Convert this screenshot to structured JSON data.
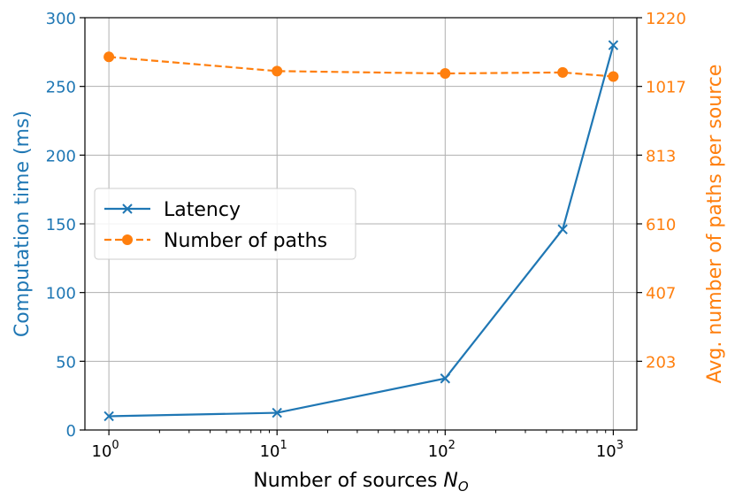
{
  "chart_data": {
    "type": "line",
    "xscale": "log",
    "x": [
      1,
      10,
      100,
      500,
      1000
    ],
    "xlim": [
      0.72,
      1380
    ],
    "xticks": [
      {
        "value": 1,
        "base": "10",
        "exp": "0"
      },
      {
        "value": 10,
        "base": "10",
        "exp": "1"
      },
      {
        "value": 100,
        "base": "10",
        "exp": "2"
      },
      {
        "value": 1000,
        "base": "10",
        "exp": "3"
      }
    ],
    "xlabel": "Number of sources ",
    "xlabel_symbol": "N",
    "xlabel_subscript": "O",
    "left_axis": {
      "label": "Computation time (ms)",
      "ylim": [
        0,
        300
      ],
      "ticks": [
        "0",
        "50",
        "100",
        "150",
        "200",
        "250",
        "300"
      ],
      "color": "#1f77b4"
    },
    "right_axis": {
      "label": "Avg. number of paths per source",
      "ylim": [
        0,
        1220
      ],
      "tick_values": [
        203.33,
        406.67,
        610,
        813.33,
        1016.67,
        1220
      ],
      "ticks": [
        "203",
        "407",
        "610",
        "813",
        "1017",
        "1220"
      ],
      "color": "#ff7f0e"
    },
    "grid": true,
    "series": [
      {
        "name": "Latency",
        "axis": "left",
        "values": [
          10,
          12.5,
          37.5,
          146,
          280
        ],
        "color": "#1f77b4",
        "marker": "x",
        "linestyle": "solid"
      },
      {
        "name": "Number of paths",
        "axis": "right",
        "values": [
          1104,
          1062,
          1055,
          1058,
          1046
        ],
        "color": "#ff7f0e",
        "marker": "circle",
        "linestyle": "dashed"
      }
    ],
    "legend": {
      "placement": "center-left",
      "entries": [
        "Latency",
        "Number of paths"
      ]
    }
  }
}
